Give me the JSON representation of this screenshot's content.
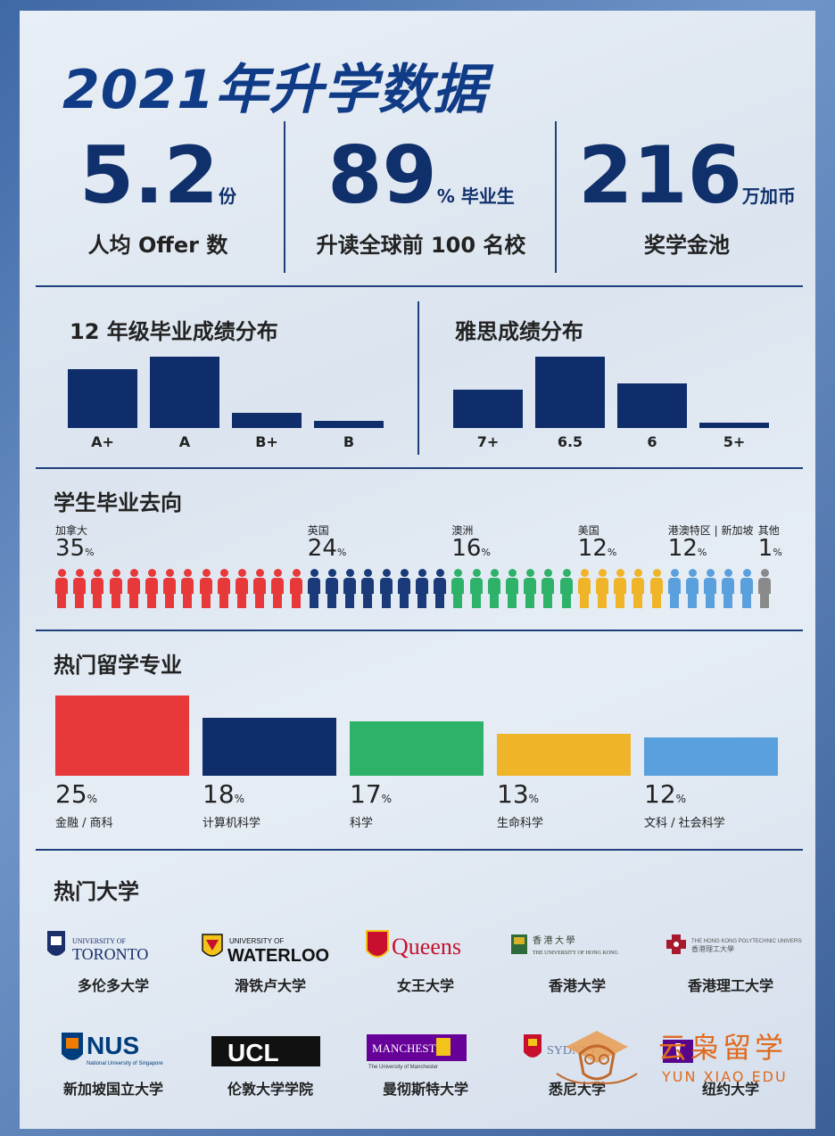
{
  "title": "2021年升学数据",
  "stats": [
    {
      "value": "5.2",
      "unit": "份",
      "label": "人均 Offer 数"
    },
    {
      "value": "89",
      "unit": "% 毕业生",
      "label": "升读全球前 100 名校"
    },
    {
      "value": "216",
      "unit": "万加币",
      "label": "奖学金池"
    }
  ],
  "colors": {
    "navy": "#0f2d6a",
    "red": "#e8393a",
    "blue": "#1a3a7a",
    "green": "#2eb26a",
    "yellow": "#f0b429",
    "lightblue": "#5aa0dc",
    "grey": "#8a8a8a"
  },
  "chart_data": [
    {
      "type": "bar",
      "title": "12 年级毕业成绩分布",
      "categories": [
        "A+",
        "A",
        "B+",
        "B"
      ],
      "values": [
        66,
        80,
        17,
        8
      ]
    },
    {
      "type": "bar",
      "title": "雅思成绩分布",
      "categories": [
        "7+",
        "6.5",
        "6",
        "5+"
      ],
      "values": [
        43,
        80,
        50,
        6
      ]
    },
    {
      "type": "bar",
      "title": "学生毕业去向",
      "categories": [
        "加拿大",
        "英国",
        "澳洲",
        "美国",
        "港澳特区 | 新加坡",
        "其他"
      ],
      "values": [
        35,
        24,
        16,
        12,
        12,
        1
      ],
      "unit": "%",
      "person_counts": [
        14,
        8,
        7,
        5,
        5,
        1
      ]
    },
    {
      "type": "bar",
      "title": "热门留学专业",
      "categories": [
        "金融 / 商科",
        "计算机科学",
        "科学",
        "生命科学",
        "文科 / 社会科学"
      ],
      "values": [
        25,
        18,
        17,
        13,
        12
      ],
      "unit": "%"
    }
  ],
  "universities_heading": "热门大学",
  "universities": [
    {
      "logo": "UNIVERSITY OF TORONTO",
      "name": "多伦多大学"
    },
    {
      "logo": "UNIVERSITY OF WATERLOO",
      "name": "滑铁卢大学"
    },
    {
      "logo": "Queens",
      "name": "女王大学"
    },
    {
      "logo": "香港大學 THE UNIVERSITY OF HONG KONG",
      "name": "香港大学"
    },
    {
      "logo": "THE HONG KONG POLYTECHNIC UNIVERSITY 香港理工大學",
      "name": "香港理工大学"
    },
    {
      "logo": "NUS National University of Singapore",
      "name": "新加坡国立大学"
    },
    {
      "logo": "UCL",
      "name": "伦敦大学学院"
    },
    {
      "logo": "MANCHESTER The University of Manchester",
      "name": "曼彻斯特大学"
    },
    {
      "logo": "SYDNEY",
      "name": "悉尼大学"
    },
    {
      "logo": "NYU",
      "name": "纽约大学"
    }
  ],
  "watermark": {
    "cn": "云枭留学",
    "en": "YUN XIAO EDU"
  }
}
